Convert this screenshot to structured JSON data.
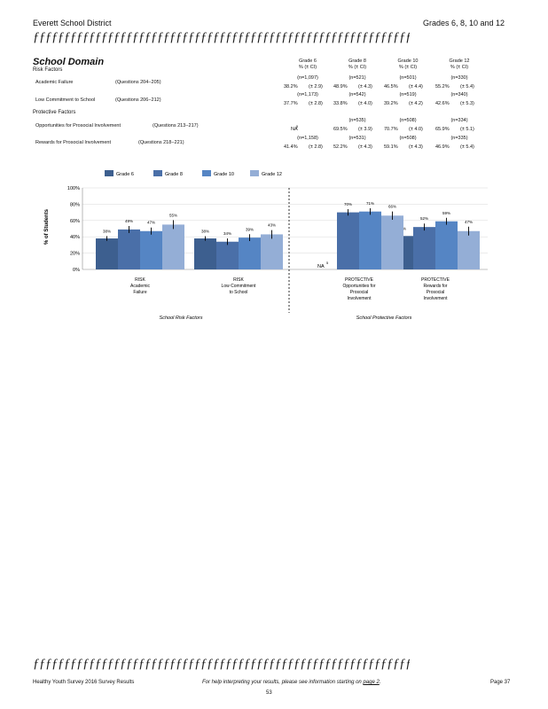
{
  "header": {
    "district": "Everett School District",
    "grades": "Grades 6, 8, 10 and 12",
    "rule": "ƒƒƒƒƒƒƒƒƒƒƒƒƒƒƒƒƒƒƒƒƒƒƒƒƒƒƒƒƒƒƒƒƒƒƒƒƒƒƒƒƒƒƒƒƒƒƒƒƒƒƒƒƒƒƒƒƒƒƒƒƒƒƒƒƒƒƒƒ"
  },
  "section": {
    "title": "School Domain",
    "risk_heading": "Risk Factors",
    "protective_heading": "Protective Factors"
  },
  "table": {
    "grade_headers": [
      "Grade 6",
      "Grade 8",
      "Grade 10",
      "Grade 12"
    ],
    "ci_header": "% (± CI)",
    "rows": [
      {
        "label": "Academic Failure",
        "questions": "(Questions 204−205)",
        "n": [
          "(n=1,097)",
          "(n=521)",
          "(n=501)",
          "(n=330)"
        ],
        "values": [
          "38.2%",
          "48.9%",
          "46.5%",
          "55.2%"
        ],
        "ci": [
          "(± 2.9)",
          "(± 4.3)",
          "(± 4.4)",
          "(± 5.4)"
        ]
      },
      {
        "label": "Low Commitment to School",
        "questions": "(Questions 206−212)",
        "n": [
          "(n=1,173)",
          "(n=542)",
          "(n=519)",
          "(n=340)"
        ],
        "values": [
          "37.7%",
          "33.8%",
          "39.2%",
          "42.6%"
        ],
        "ci": [
          "(± 2.8)",
          "(± 4.0)",
          "(± 4.2)",
          "(± 5.3)"
        ]
      },
      {
        "label": "Opportunities for Prosocial Involvement",
        "questions": "(Questions 213−217)",
        "n": [
          "",
          "(n=535)",
          "(n=508)",
          "(n=334)"
        ],
        "values": [
          "NA",
          "69.5%",
          "70.7%",
          "65.9%"
        ],
        "ci": [
          "",
          "(± 3.9)",
          "(± 4.0)",
          "(± 5.1)"
        ],
        "na_note": "5"
      },
      {
        "label": "Rewards for Prosocial Involvement",
        "questions": "(Questions 218−221)",
        "n": [
          "(n=1,158)",
          "(n=531)",
          "(n=508)",
          "(n=335)"
        ],
        "values": [
          "41.4%",
          "52.2%",
          "59.1%",
          "46.9%"
        ],
        "ci": [
          "(± 2.8)",
          "(± 4.3)",
          "(± 4.3)",
          "(± 5.4)"
        ]
      }
    ]
  },
  "chart_data": {
    "type": "bar",
    "ylabel": "% of Students",
    "ylim": [
      0,
      100
    ],
    "yticks": [
      "0%",
      "20%",
      "40%",
      "60%",
      "80%",
      "100%"
    ],
    "colors": [
      "#3d5f8f",
      "#4a6fa8",
      "#5585c4",
      "#94aed6"
    ],
    "series": [
      {
        "name": "Grade 6",
        "values": [
          38,
          38,
          null,
          41
        ],
        "errors": [
          2.9,
          2.8,
          null,
          2.8
        ]
      },
      {
        "name": "Grade 8",
        "values": [
          49,
          34,
          70,
          52
        ],
        "errors": [
          4.3,
          4.0,
          3.9,
          4.3
        ]
      },
      {
        "name": "Grade 10",
        "values": [
          47,
          39,
          71,
          59
        ],
        "errors": [
          4.4,
          4.2,
          4.0,
          4.3
        ]
      },
      {
        "name": "Grade 12",
        "values": [
          55,
          43,
          66,
          47
        ],
        "errors": [
          5.4,
          5.3,
          5.1,
          5.4
        ]
      }
    ],
    "data_labels": [
      [
        "38%",
        "38%",
        "",
        "41%"
      ],
      [
        "49%",
        "34%",
        "70%",
        "52%"
      ],
      [
        "47%",
        "39%",
        "71%",
        "59%"
      ],
      [
        "55%",
        "43%",
        "66%",
        "47%"
      ]
    ],
    "categories": [
      [
        "RISK",
        "Academic",
        "Failure"
      ],
      [
        "RISK",
        "Low Commitment",
        "to School"
      ],
      [
        "PROTECTIVE",
        "Opportunities for",
        "Prosocial",
        "Involvement"
      ],
      [
        "PROTECTIVE",
        "Rewards for",
        "Prosocial",
        "Involvement"
      ]
    ],
    "na_label": "NA",
    "na_superscript": "5",
    "group_labels": [
      "School Risk Factors",
      "School Protective Factors"
    ]
  },
  "footer": {
    "left": "Healthy Youth Survey 2016 Survey Results",
    "center_prefix": "For help interpreting your results, please see information starting on",
    "center_link": "page 2",
    "center_suffix": ".",
    "page": "Page 37",
    "page_number": "53"
  }
}
